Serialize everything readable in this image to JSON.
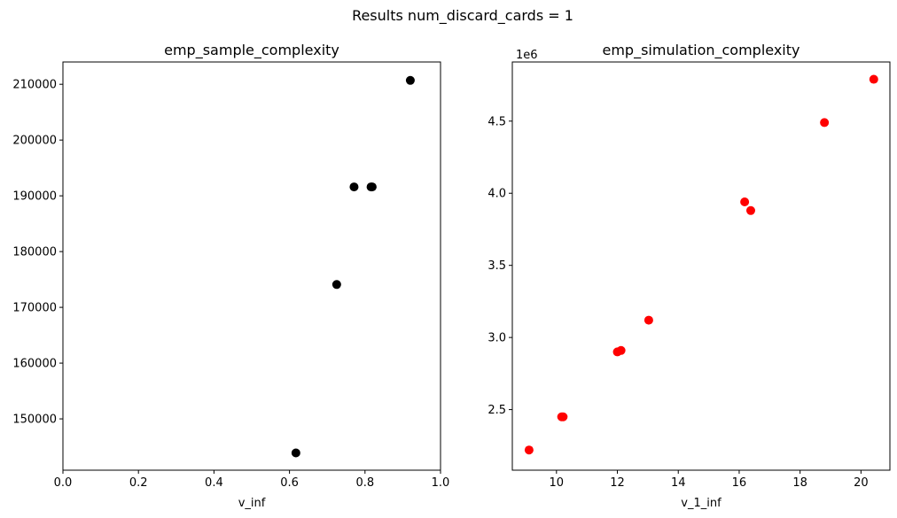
{
  "figure": {
    "suptitle": "Results num_discard_cards = 1"
  },
  "chart_data": [
    {
      "type": "scatter",
      "title": "emp_sample_complexity",
      "xlabel": "v_inf",
      "ylabel": "",
      "xlim": [
        0.0,
        1.0
      ],
      "ylim": [
        140800,
        214000
      ],
      "xticks": [
        0.0,
        0.2,
        0.4,
        0.6,
        0.8,
        1.0
      ],
      "xtick_labels": [
        "0.0",
        "0.2",
        "0.4",
        "0.6",
        "0.8",
        "1.0"
      ],
      "yticks": [
        150000,
        160000,
        170000,
        180000,
        190000,
        200000,
        210000
      ],
      "ytick_labels": [
        "150000",
        "160000",
        "170000",
        "180000",
        "190000",
        "200000",
        "210000"
      ],
      "offset_text": "",
      "grid": false,
      "series": [
        {
          "color": "#000000",
          "x": [
            0.617,
            0.725,
            0.771,
            0.816,
            0.819,
            0.92
          ],
          "y": [
            143900,
            174100,
            191600,
            191600,
            191600,
            210700
          ]
        }
      ]
    },
    {
      "type": "scatter",
      "title": "emp_simulation_complexity",
      "xlabel": "v_1_inf",
      "ylabel": "",
      "xlim": [
        8.55,
        20.95
      ],
      "ylim": [
        2.08,
        4.91
      ],
      "xticks": [
        10,
        12,
        14,
        16,
        18,
        20
      ],
      "xtick_labels": [
        "10",
        "12",
        "14",
        "16",
        "18",
        "20"
      ],
      "yticks": [
        2.5,
        3.0,
        3.5,
        4.0,
        4.5
      ],
      "ytick_labels": [
        "2.5",
        "3.0",
        "3.5",
        "4.0",
        "4.5"
      ],
      "offset_text": "1e6",
      "grid": false,
      "series": [
        {
          "color": "#ff0000",
          "x": [
            9.1,
            10.17,
            10.22,
            12.0,
            12.12,
            13.03,
            16.18,
            16.38,
            18.8,
            20.42
          ],
          "y": [
            2.22,
            2.45,
            2.45,
            2.9,
            2.91,
            3.12,
            3.94,
            3.88,
            4.49,
            4.79
          ]
        }
      ]
    }
  ]
}
